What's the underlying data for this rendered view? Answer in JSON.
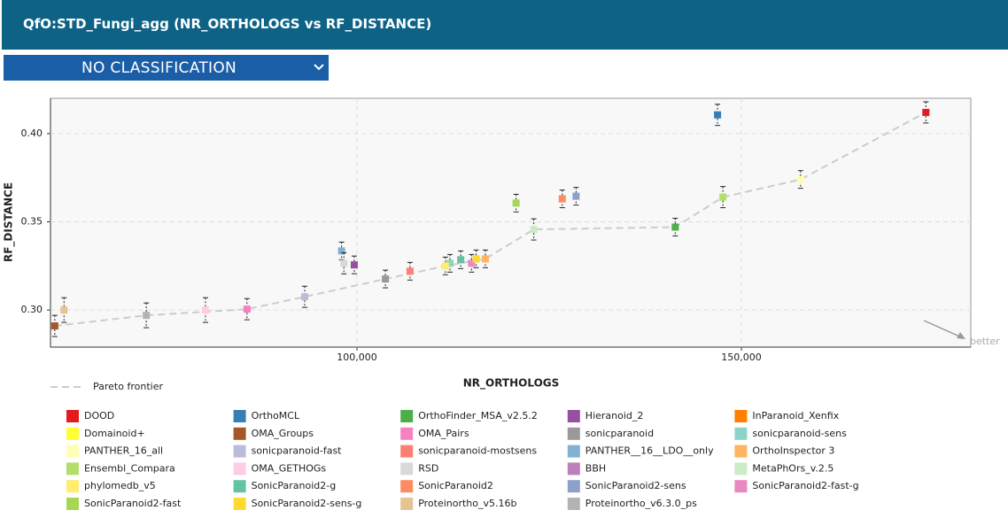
{
  "header": {
    "title": "QfO:STD_Fungi_agg (NR_ORTHOLOGS vs RF_DISTANCE)"
  },
  "dropdown": {
    "label": "NO CLASSIFICATION"
  },
  "chart_data": {
    "type": "scatter",
    "xlabel": "NR_ORTHOLOGS",
    "ylabel": "RF_DISTANCE",
    "annotation": "better",
    "xlim": [
      60140,
      179840
    ],
    "ylim": [
      0.279,
      0.42
    ],
    "xticks": [
      {
        "value": 100000,
        "label": "100,000"
      },
      {
        "value": 150000,
        "label": "150,000"
      }
    ],
    "yticks": [
      {
        "value": 0.3,
        "label": "0.30"
      },
      {
        "value": 0.35,
        "label": "0.35"
      },
      {
        "value": 0.4,
        "label": "0.40"
      }
    ],
    "grid": true,
    "frontier": {
      "name": "Pareto frontier",
      "color": "#cccccc",
      "x": [
        60700,
        72600,
        85700,
        93200,
        103700,
        111500,
        116700,
        123000,
        141400,
        147600,
        157700,
        174000
      ],
      "y": [
        0.291,
        0.297,
        0.3005,
        0.3075,
        0.3176,
        0.325,
        0.329,
        0.3457,
        0.347,
        0.364,
        0.374,
        0.412
      ]
    },
    "series": [
      {
        "name": "DOOD",
        "color": "#e41a1c",
        "x": 174000,
        "y": 0.412,
        "error": 0.006
      },
      {
        "name": "OrthoMCL",
        "color": "#377eb8",
        "x": 146900,
        "y": 0.4106,
        "error": 0.006
      },
      {
        "name": "OrthoFinder_MSA_v2.5.2",
        "color": "#4daf4a",
        "x": 141400,
        "y": 0.347,
        "error": 0.005
      },
      {
        "name": "Hieranoid_2",
        "color": "#984ea3",
        "x": 99650,
        "y": 0.3256,
        "error": 0.005
      },
      {
        "name": "InParanoid_Xenfix",
        "color": "#ff7f00",
        "x": null,
        "y": null,
        "error": null
      },
      {
        "name": "Domainoid+",
        "color": "#ffff33",
        "x": null,
        "y": null,
        "error": null
      },
      {
        "name": "OMA_Groups",
        "color": "#a65628",
        "x": 60700,
        "y": 0.291,
        "error": 0.006
      },
      {
        "name": "OMA_Pairs",
        "color": "#f781bf",
        "x": 85700,
        "y": 0.3005,
        "error": 0.006
      },
      {
        "name": "sonicparanoid",
        "color": "#999999",
        "x": 103700,
        "y": 0.3176,
        "error": 0.005
      },
      {
        "name": "sonicparanoid-sens",
        "color": "#8dd3c7",
        "x": 112100,
        "y": 0.3265,
        "error": 0.005
      },
      {
        "name": "PANTHER_16_all",
        "color": "#ffffb3",
        "x": 157700,
        "y": 0.374,
        "error": 0.005
      },
      {
        "name": "sonicparanoid-fast",
        "color": "#bebada",
        "x": 93200,
        "y": 0.3075,
        "error": 0.006
      },
      {
        "name": "sonicparanoid-mostsens",
        "color": "#fb8072",
        "x": 106900,
        "y": 0.322,
        "error": 0.005
      },
      {
        "name": "PANTHER__16__LDO__only",
        "color": "#80b1d3",
        "x": 98000,
        "y": 0.3335,
        "error": 0.005
      },
      {
        "name": "OrthoInspector 3",
        "color": "#fdb462",
        "x": 116700,
        "y": 0.329,
        "error": 0.005
      },
      {
        "name": "Ensembl_Compara",
        "color": "#b3de69",
        "x": 147600,
        "y": 0.364,
        "error": 0.006
      },
      {
        "name": "OMA_GETHOGs",
        "color": "#fccde5",
        "x": 80300,
        "y": 0.3,
        "error": 0.007
      },
      {
        "name": "RSD",
        "color": "#d9d9d9",
        "x": 98300,
        "y": 0.3265,
        "error": 0.006
      },
      {
        "name": "BBH",
        "color": "#bc80bd",
        "x": null,
        "y": null,
        "error": null
      },
      {
        "name": "MetaPhOrs_v.2.5",
        "color": "#ccebc5",
        "x": 123000,
        "y": 0.3457,
        "error": 0.006
      },
      {
        "name": "phylomedb_v5",
        "color": "#ffed6f",
        "x": 111500,
        "y": 0.325,
        "error": 0.005
      },
      {
        "name": "SonicParanoid2-g",
        "color": "#66c2a5",
        "x": 113500,
        "y": 0.3285,
        "error": 0.005
      },
      {
        "name": "SonicParanoid2",
        "color": "#fc8d62",
        "x": 126700,
        "y": 0.363,
        "error": 0.005
      },
      {
        "name": "SonicParanoid2-sens",
        "color": "#8da0cb",
        "x": 128500,
        "y": 0.3645,
        "error": 0.005
      },
      {
        "name": "SonicParanoid2-fast-g",
        "color": "#e78ac3",
        "x": 114900,
        "y": 0.3265,
        "error": 0.005
      },
      {
        "name": "SonicParanoid2-fast",
        "color": "#a6d854",
        "x": 120700,
        "y": 0.3606,
        "error": 0.005
      },
      {
        "name": "SonicParanoid2-sens-g",
        "color": "#ffd92f",
        "x": 115500,
        "y": 0.329,
        "error": 0.005
      },
      {
        "name": "Proteinortho_v5.16b",
        "color": "#e5c494",
        "x": 61900,
        "y": 0.3,
        "error": 0.007
      },
      {
        "name": "Proteinortho_v6.3.0_ps",
        "color": "#b3b3b3",
        "x": 72600,
        "y": 0.297,
        "error": 0.007
      }
    ]
  }
}
